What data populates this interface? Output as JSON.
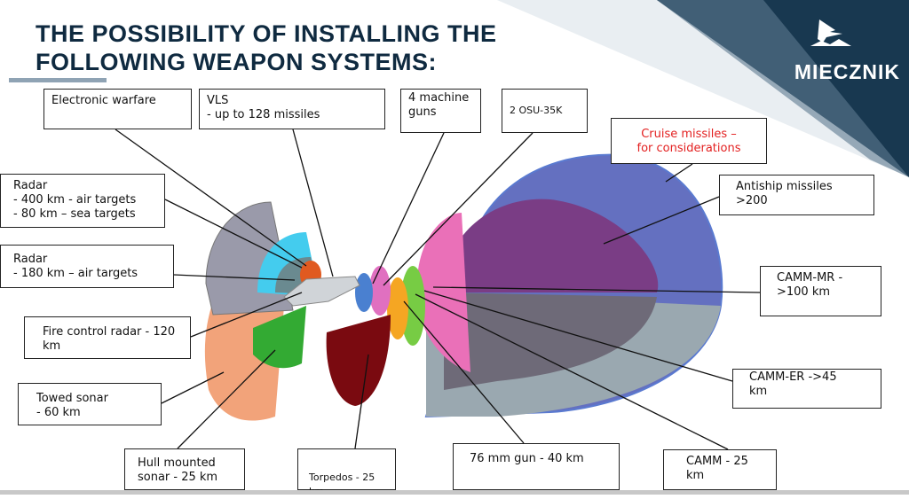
{
  "slide": {
    "title_line1": "THE POSSIBILITY OF INSTALLING THE",
    "title_line2": "FOLLOWING WEAPON SYSTEMS:",
    "logo_text": "MIECZNIK",
    "colors": {
      "title": "#0f2a40",
      "brand_dark": "#0d2d47",
      "highlight_red": "#e32020"
    }
  },
  "labels": {
    "electronic_warfare": "Electronic warfare",
    "vls": "VLS\n- up to 128 missiles",
    "machine_guns": "4 machine\nguns",
    "osu": "2 OSU-35K",
    "cruise": "Cruise missiles –\nfor considerations",
    "antiship": "Antiship missiles >200",
    "radar_400": "Radar\n- 400 km - air targets\n- 80 km – sea targets",
    "radar_180": "Radar\n- 180 km – air targets",
    "fire_control": "Fire control radar - 120\nkm",
    "towed_sonar": "Towed sonar\n- 60 km",
    "hull_sonar": "Hull mounted\nsonar - 25 km",
    "torpedos": "Torpedos  - 25 km",
    "gun_76": "76 mm gun - 40 km",
    "camm": "CAMM - 25 km",
    "camm_er": "CAMM-ER  ->45\nkm",
    "camm_mr": "CAMM-MR -\n>100 km"
  }
}
